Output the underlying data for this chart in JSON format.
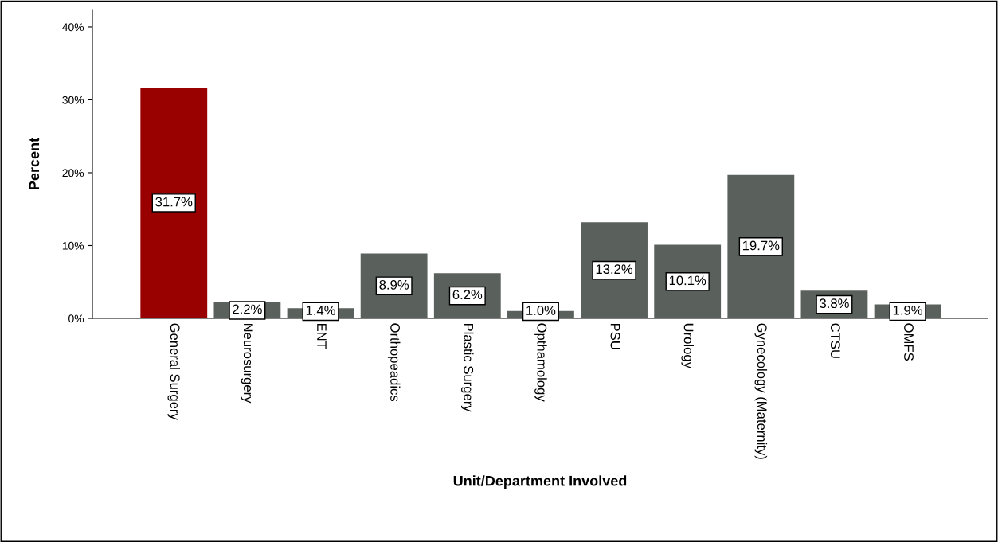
{
  "chart_data": {
    "type": "bar",
    "xlabel": "Unit/Department Involved",
    "ylabel": "Percent",
    "categories": [
      "General Surgery",
      "Neurosurgery",
      "ENT",
      "Orthopeadics",
      "Plastic Surgery",
      "Opthamology",
      "PSU",
      "Urology",
      "Gynecology (Maternity)",
      "CTSU",
      "OMFS"
    ],
    "values": [
      31.7,
      2.2,
      1.4,
      8.9,
      6.2,
      1.0,
      13.2,
      10.1,
      19.7,
      3.8,
      1.9
    ],
    "colors": [
      "#990000",
      "#5a615c",
      "#5a615c",
      "#5a615c",
      "#5a615c",
      "#5a615c",
      "#5a615c",
      "#5a615c",
      "#5a615c",
      "#5a615c",
      "#5a615c"
    ],
    "value_labels": [
      "31.7%",
      "2.2%",
      "1.4%",
      "8.9%",
      "6.2%",
      "1.0%",
      "13.2%",
      "10.1%",
      "19.7%",
      "3.8%",
      "1.9%"
    ],
    "ylim": [
      0,
      42.4
    ],
    "yticks": [
      {
        "value": 0,
        "label": "0%"
      },
      {
        "value": 10,
        "label": "10%"
      },
      {
        "value": 20,
        "label": "20%"
      },
      {
        "value": 30,
        "label": "30%"
      },
      {
        "value": 40,
        "label": "40%"
      }
    ],
    "grid": false,
    "legend": false
  }
}
